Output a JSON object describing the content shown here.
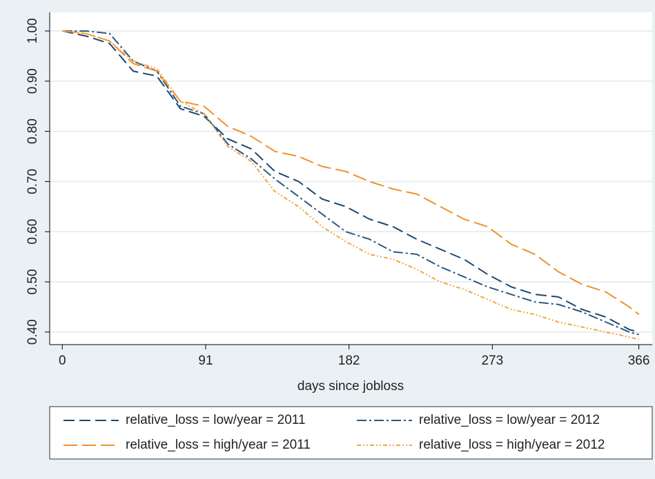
{
  "chart_data": {
    "type": "line",
    "xlabel": "days since jobloss",
    "x": [
      0,
      15,
      30,
      45,
      60,
      75,
      90,
      105,
      120,
      135,
      150,
      165,
      180,
      195,
      210,
      225,
      240,
      255,
      270,
      285,
      300,
      315,
      330,
      345,
      360,
      366
    ],
    "series": [
      {
        "name": "relative_loss = low/year = 2011",
        "color": "#1a476f",
        "dash": "16 7",
        "values": [
          1.0,
          0.99,
          0.975,
          0.92,
          0.91,
          0.845,
          0.83,
          0.785,
          0.765,
          0.72,
          0.7,
          0.665,
          0.65,
          0.625,
          0.61,
          0.585,
          0.565,
          0.545,
          0.515,
          0.49,
          0.475,
          0.47,
          0.445,
          0.43,
          0.405,
          0.4
        ]
      },
      {
        "name": "relative_loss = low/year = 2012",
        "color": "#2a5783",
        "dash": "14 4 3 4",
        "values": [
          1.0,
          1.0,
          0.995,
          0.94,
          0.92,
          0.85,
          0.835,
          0.775,
          0.745,
          0.705,
          0.67,
          0.635,
          0.6,
          0.585,
          0.56,
          0.555,
          0.53,
          0.51,
          0.49,
          0.475,
          0.46,
          0.455,
          0.44,
          0.42,
          0.4,
          0.395
        ]
      },
      {
        "name": "relative_loss = high/year = 2011",
        "color": "#f0902b",
        "dash": "20 7",
        "values": [
          1.0,
          0.995,
          0.98,
          0.935,
          0.92,
          0.86,
          0.85,
          0.81,
          0.79,
          0.76,
          0.75,
          0.73,
          0.72,
          0.7,
          0.685,
          0.675,
          0.65,
          0.625,
          0.61,
          0.575,
          0.555,
          0.52,
          0.495,
          0.48,
          0.45,
          0.435
        ]
      },
      {
        "name": "relative_loss = high/year = 2012",
        "color": "#f5a33f",
        "dash": "6 3 2 3 2 3",
        "values": [
          1.0,
          0.995,
          0.98,
          0.94,
          0.925,
          0.86,
          0.835,
          0.77,
          0.74,
          0.68,
          0.65,
          0.61,
          0.58,
          0.555,
          0.545,
          0.525,
          0.5,
          0.485,
          0.465,
          0.445,
          0.435,
          0.42,
          0.41,
          0.4,
          0.39,
          0.385
        ]
      }
    ],
    "xlim": [
      -8,
      374.5
    ],
    "xticks": [
      0,
      91,
      182,
      273,
      366
    ],
    "ylim": [
      0.375,
      1.037
    ],
    "yticks": [
      {
        "value": 0.4,
        "label": "0.40"
      },
      {
        "value": 0.5,
        "label": "0.50"
      },
      {
        "value": 0.6,
        "label": "0.60"
      },
      {
        "value": 0.7,
        "label": "0.70"
      },
      {
        "value": 0.8,
        "label": "0.80"
      },
      {
        "value": 0.9,
        "label": "0.90"
      },
      {
        "value": 1.0,
        "label": "1.00"
      }
    ],
    "grid": true,
    "legend": "bottom"
  }
}
